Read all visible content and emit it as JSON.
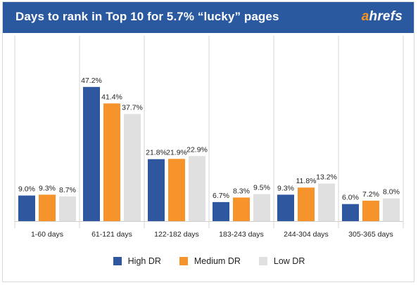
{
  "header": {
    "title": "Days to rank in Top 10 for 5.7% “lucky” pages",
    "logo_accent": "a",
    "logo_rest": "hrefs"
  },
  "colors": {
    "header_bg": "#2b59a0",
    "high_dr": "#2e57a0",
    "medium_dr": "#f7932b",
    "low_dr": "#e0e0e0",
    "logo_accent": "#f7941d"
  },
  "chart_data": {
    "type": "bar",
    "title": "Days to rank in Top 10 for 5.7% “lucky” pages",
    "categories": [
      "1-60 days",
      "61-121 days",
      "122-182 days",
      "183-243 days",
      "244-304 days",
      "305-365 days"
    ],
    "series": [
      {
        "name": "High DR",
        "color": "#2e57a0",
        "values": [
          9.0,
          47.2,
          21.8,
          6.7,
          9.3,
          6.0
        ],
        "labels": [
          "9.0%",
          "47.2%",
          "21.8%",
          "6.7%",
          "9.3%",
          "6.0%"
        ]
      },
      {
        "name": "Medium DR",
        "color": "#f7932b",
        "values": [
          9.3,
          41.4,
          21.9,
          8.3,
          11.8,
          7.2
        ],
        "labels": [
          "9.3%",
          "41.4%",
          "21.9%",
          "8.3%",
          "11.8%",
          "7.2%"
        ]
      },
      {
        "name": "Low DR",
        "color": "#e0e0e0",
        "values": [
          8.7,
          37.7,
          22.9,
          9.5,
          13.2,
          8.0
        ],
        "labels": [
          "8.7%",
          "37.7%",
          "22.9%",
          "9.5%",
          "13.2%",
          "8.0%"
        ]
      }
    ],
    "ylim": [
      0,
      50
    ],
    "xlabel": "",
    "ylabel": "",
    "grid": false,
    "legend_position": "bottom"
  }
}
